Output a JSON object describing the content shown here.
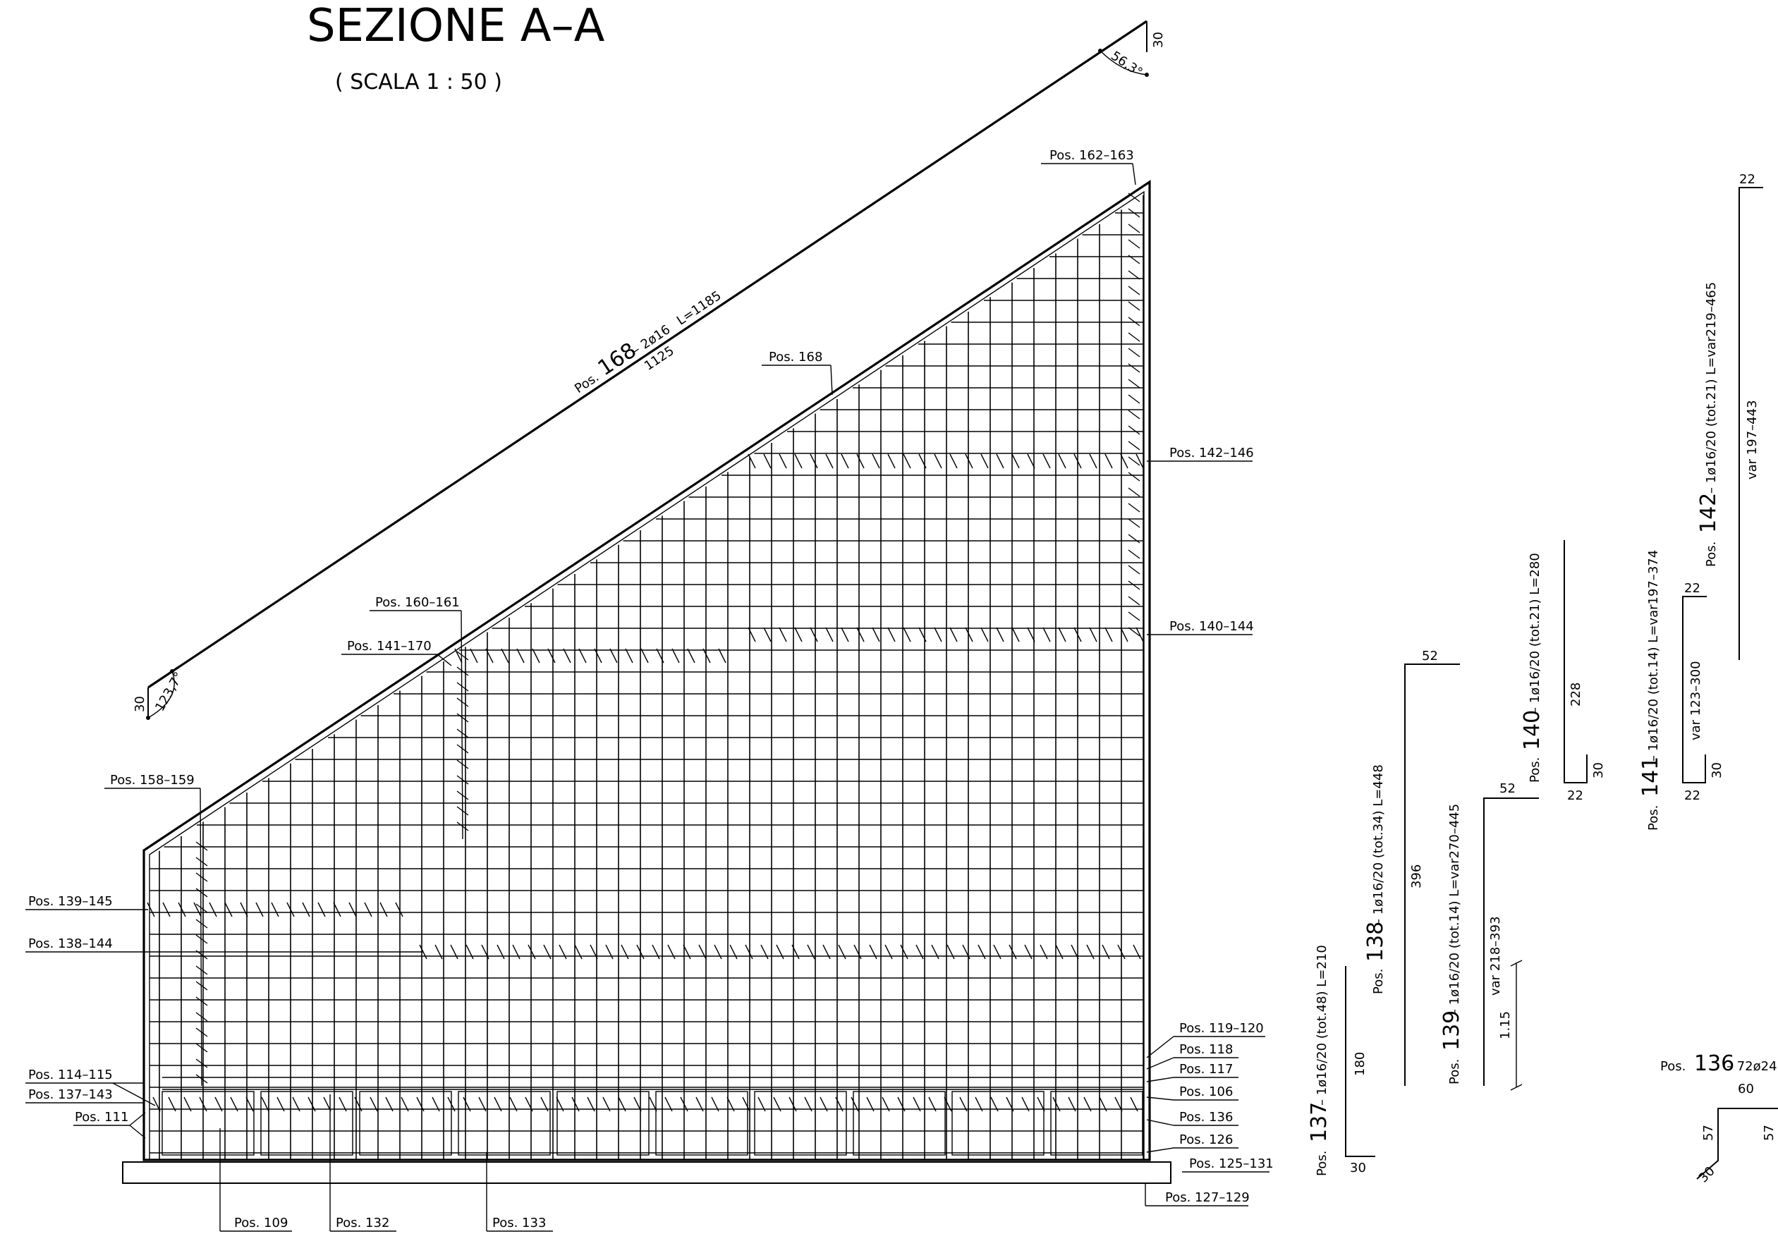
{
  "drawing": {
    "title": "SEZIONE A–A",
    "scale": "( SCALA 1 : 50 )",
    "top_bar": {
      "pos_word": "Pos.",
      "pos_num": "168",
      "spec": "– 2ø16",
      "length": "L=1185",
      "dim": "1125",
      "angle_top": "56,3°",
      "angle_bottom": "123,7°",
      "hook": "30"
    },
    "callouts": {
      "p162_163": "Pos. 162–163",
      "p168": "Pos. 168",
      "p142_146": "Pos. 142–146",
      "p140_144": "Pos. 140–144",
      "p160_161": "Pos. 160–161",
      "p141_170": "Pos. 141–170",
      "p158_159": "Pos. 158–159",
      "p139_145": "Pos. 139–145",
      "p138_144": "Pos. 138–144",
      "p114_115": "Pos. 114–115",
      "p137_143": "Pos. 137–143",
      "p111": "Pos. 111",
      "p119_120": "Pos. 119–120",
      "p118": "Pos. 118",
      "p117": "Pos. 117",
      "p106": "Pos. 106",
      "p136": "Pos. 136",
      "p126": "Pos. 126",
      "p125_131": "Pos. 125–131",
      "p127_129": "Pos. 127–129",
      "p109": "Pos. 109",
      "p132": "Pos. 132",
      "p133": "Pos. 133"
    },
    "schedules": {
      "s137": {
        "pos": "Pos.",
        "num": "137",
        "spec": "– 1ø16/20 (tot.48)  L=210",
        "dim_v": "180",
        "dim_h": "30"
      },
      "s138": {
        "pos": "Pos.",
        "num": "138",
        "spec": "– 1ø16/20 (tot.34)  L=448",
        "dim_v": "396",
        "dim_h": "52"
      },
      "s139": {
        "pos": "Pos.",
        "num": "139",
        "spec": "– 1ø16/20 (tot.14)  L=var270–445",
        "dim_v": "var  218–393",
        "dim_h": "52",
        "dim_small": "1.15"
      },
      "s140": {
        "pos": "Pos.",
        "num": "140",
        "spec": "– 1ø16/20 (tot.21)  L=280",
        "dim_v": "228",
        "dim_h": "22",
        "dim_hook": "30"
      },
      "s141": {
        "pos": "Pos.",
        "num": "141",
        "spec": "– 1ø16/20 (tot.14)  L=var197–374",
        "dim_v": "var  123–300",
        "dim_h_top": "22",
        "dim_h_bot": "22",
        "dim_hook": "30"
      },
      "s142": {
        "pos": "Pos.",
        "num": "142",
        "spec": "– 1ø16/20 (tot.21)  L=var219–465",
        "dim_v": "var  197–443",
        "dim_h": "22"
      },
      "s136": {
        "pos": "Pos.",
        "num": "136",
        "spec": "– 72ø24",
        "dim_top": "60",
        "dim_l": "57",
        "dim_r": "57",
        "dim_hook": "30"
      }
    }
  }
}
